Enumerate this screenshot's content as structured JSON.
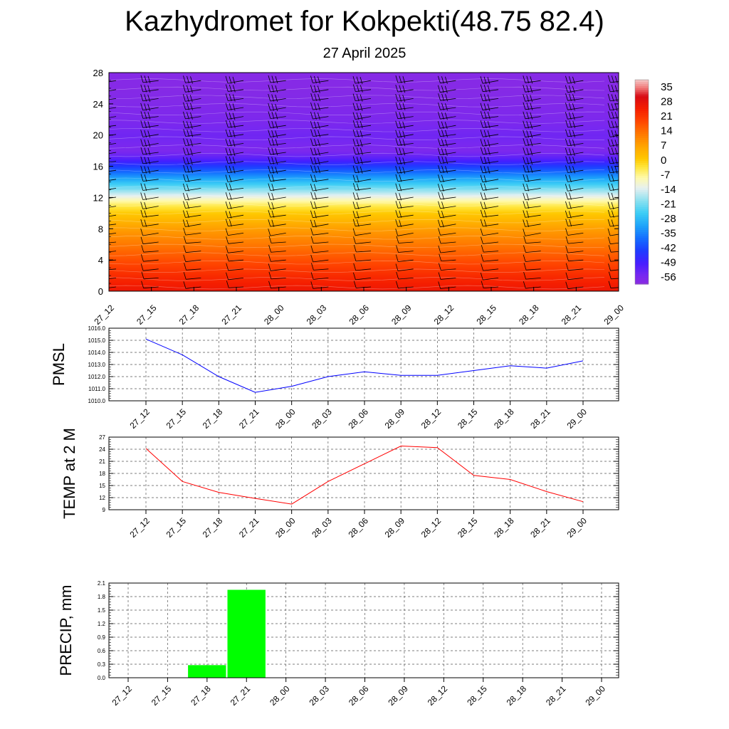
{
  "title": "Kazhydromet for Kokpekti(48.75 82.4)",
  "date": "27 April 2025",
  "chart_data": [
    {
      "type": "heatmap",
      "title": "Kazhydromet for Kokpekti(48.75 82.4)",
      "subtitle": "27 April 2025",
      "x_tick_labels": [
        "27_12",
        "27_15",
        "27_18",
        "27_21",
        "28_00",
        "28_03",
        "28_06",
        "28_09",
        "28_12",
        "28_15",
        "28_18",
        "28_21",
        "29_00"
      ],
      "y_tick_labels": [
        "0",
        "4",
        "8",
        "12",
        "16",
        "20",
        "24",
        "28"
      ],
      "ylim": [
        0,
        28
      ],
      "colorbar_labels": [
        "35",
        "28",
        "21",
        "14",
        "7",
        "0",
        "-7",
        "-14",
        "-21",
        "-28",
        "-35",
        "-42",
        "-49",
        "-56"
      ],
      "colorbar_range": [
        -60,
        38
      ],
      "temperature_profile": [
        {
          "y": 0,
          "t": 26
        },
        {
          "y": 2,
          "t": 22
        },
        {
          "y": 4,
          "t": 17
        },
        {
          "y": 6,
          "t": 12
        },
        {
          "y": 8,
          "t": 7
        },
        {
          "y": 10,
          "t": 0
        },
        {
          "y": 11,
          "t": -5
        },
        {
          "y": 12,
          "t": -12
        },
        {
          "y": 13,
          "t": -20
        },
        {
          "y": 14,
          "t": -28
        },
        {
          "y": 15,
          "t": -36
        },
        {
          "y": 16,
          "t": -44
        },
        {
          "y": 17,
          "t": -52
        },
        {
          "y": 18,
          "t": -57
        },
        {
          "y": 19,
          "t": -56
        },
        {
          "y": 20,
          "t": -55
        },
        {
          "y": 22,
          "t": -57
        },
        {
          "y": 24,
          "t": -58
        },
        {
          "y": 26,
          "t": -59
        },
        {
          "y": 28,
          "t": -59
        }
      ],
      "wind_barbs": "wind barbs at each hour and level"
    },
    {
      "type": "line",
      "ylabel": "PMSL",
      "x": [
        "27_12",
        "27_15",
        "27_18",
        "27_21",
        "28_00",
        "28_03",
        "28_06",
        "28_09",
        "28_12",
        "28_15",
        "28_18",
        "28_21",
        "29_00"
      ],
      "series": [
        {
          "color": "#0000ff",
          "values": [
            1015.1,
            1013.8,
            1012.0,
            1010.7,
            1011.2,
            1012.0,
            1012.4,
            1012.1,
            1012.1,
            1012.5,
            1012.9,
            1012.7,
            1013.3
          ]
        }
      ],
      "ylim": [
        1010.0,
        1016.0
      ],
      "y_tick_labels": [
        "1010.0",
        "1011.0",
        "1012.0",
        "1013.0",
        "1014.0",
        "1015.0",
        "1016.0"
      ],
      "grid": true
    },
    {
      "type": "line",
      "ylabel": "TEMP at 2 M",
      "x": [
        "27_12",
        "27_15",
        "27_18",
        "27_21",
        "28_00",
        "28_03",
        "28_06",
        "28_09",
        "28_12",
        "28_15",
        "28_18",
        "28_21",
        "29_00"
      ],
      "series": [
        {
          "color": "#ff0000",
          "values": [
            24.2,
            16.0,
            13.3,
            11.8,
            10.4,
            16.0,
            20.4,
            24.8,
            24.4,
            17.5,
            16.5,
            13.5,
            11.0
          ]
        }
      ],
      "ylim": [
        9,
        27
      ],
      "y_tick_labels": [
        "9",
        "12",
        "15",
        "18",
        "21",
        "24",
        "27"
      ],
      "grid": true
    },
    {
      "type": "bar",
      "ylabel": "PRECIP, mm",
      "categories": [
        "27_12",
        "27_15",
        "27_18",
        "27_21",
        "28_00",
        "28_03",
        "28_06",
        "28_09",
        "28_12",
        "28_15",
        "28_18",
        "28_21",
        "29_00"
      ],
      "values": [
        0,
        0,
        0.28,
        1.95,
        0,
        0,
        0,
        0,
        0,
        0,
        0,
        0,
        0
      ],
      "color": "#00ff00",
      "ylim": [
        0,
        2.1
      ],
      "y_tick_labels": [
        "0.0",
        "0.3",
        "0.6",
        "0.9",
        "1.2",
        "1.5",
        "1.8",
        "2.1"
      ],
      "grid": true
    }
  ]
}
